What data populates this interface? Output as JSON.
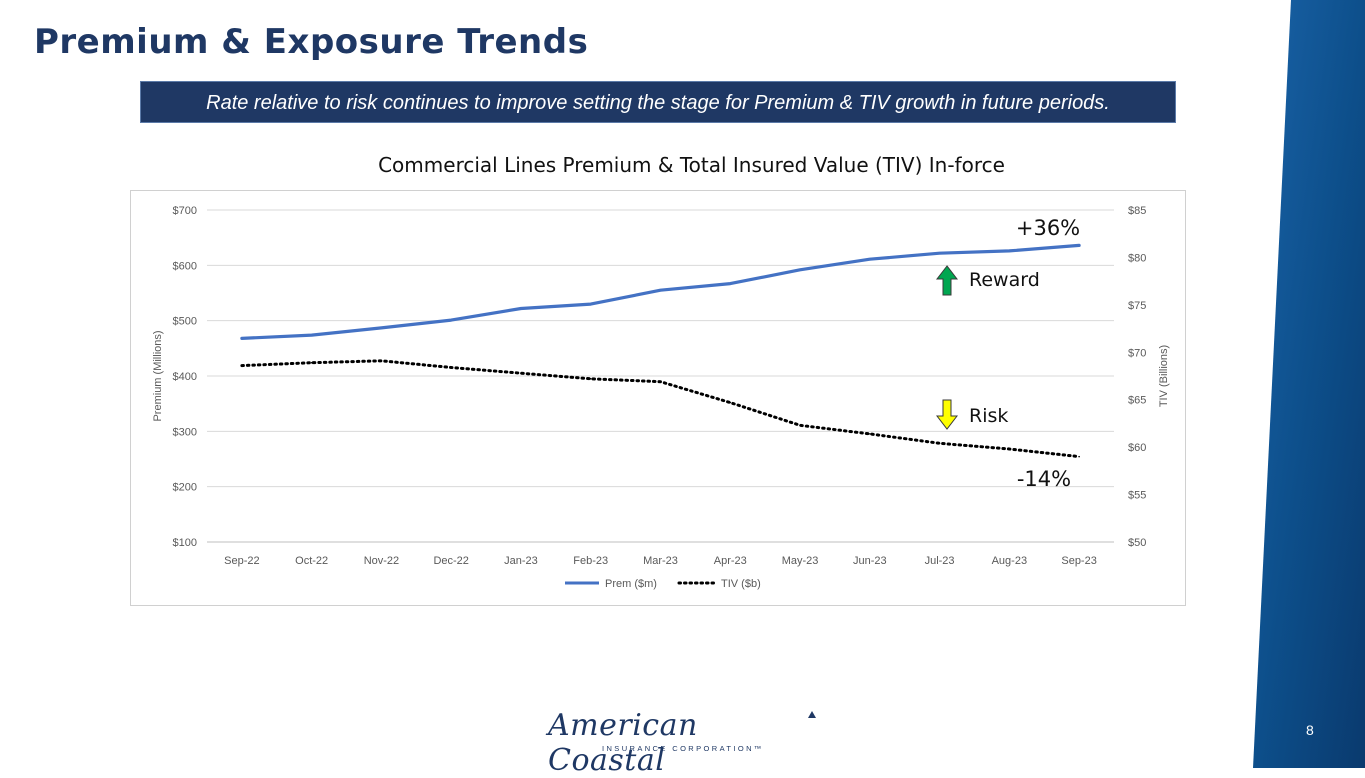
{
  "slide": {
    "title": "Premium & Exposure Trends",
    "banner": "Rate relative to risk continues to improve setting the stage for Premium & TIV growth in future periods.",
    "page_number": "8"
  },
  "logo": {
    "name": "American Coastal",
    "tagline": "INSURANCE CORPORATION™"
  },
  "colors": {
    "title": "#1f3864",
    "banner_bg": "#1f3864",
    "prem_line": "#4472c4",
    "tiv_line": "#000000",
    "reward_arrow": "#00a650",
    "risk_arrow": "#ffff00",
    "band": "#0d4f8b"
  },
  "annotations": {
    "prem_change": "+36%",
    "reward_label": "Reward",
    "risk_label": "Risk",
    "tiv_change": "-14%"
  },
  "chart_data": {
    "type": "line",
    "title": "Commercial Lines Premium & Total Insured Value (TIV) In-force",
    "categories": [
      "Sep-22",
      "Oct-22",
      "Nov-22",
      "Dec-22",
      "Jan-23",
      "Feb-23",
      "Mar-23",
      "Apr-23",
      "May-23",
      "Jun-23",
      "Jul-23",
      "Aug-23",
      "Sep-23"
    ],
    "series": [
      {
        "name": "Prem ($m)",
        "axis": "left",
        "style": "solid",
        "values": [
          468,
          474,
          487,
          501,
          522,
          530,
          555,
          567,
          592,
          611,
          622,
          626,
          636
        ]
      },
      {
        "name": "TIV ($b)",
        "axis": "right",
        "style": "dotted",
        "values": [
          68.6,
          68.9,
          69.1,
          68.4,
          67.8,
          67.2,
          66.9,
          64.7,
          62.3,
          61.4,
          60.4,
          59.8,
          59.0
        ]
      }
    ],
    "ylabel": "Premium (Millions)",
    "y2label": "TIV (Billions)",
    "ylim": [
      100,
      700
    ],
    "y2lim": [
      50,
      85
    ],
    "yticks": [
      "$100",
      "$200",
      "$300",
      "$400",
      "$500",
      "$600",
      "$700"
    ],
    "y2ticks": [
      "$50",
      "$55",
      "$60",
      "$65",
      "$70",
      "$75",
      "$80",
      "$85"
    ],
    "legend": [
      "Prem ($m)",
      "TIV ($b)"
    ],
    "legend_position": "bottom"
  }
}
